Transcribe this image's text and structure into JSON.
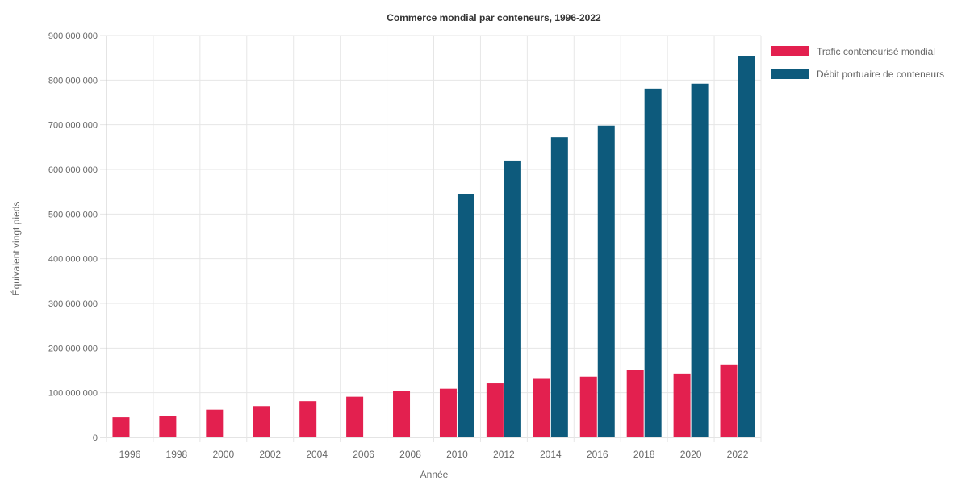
{
  "chart_data": {
    "type": "bar",
    "title": "Commerce mondial par conteneurs, 1996-2022",
    "xlabel": "Année",
    "ylabel": "Équivalent vingt pieds",
    "categories": [
      "1996",
      "1998",
      "2000",
      "2002",
      "2004",
      "2006",
      "2008",
      "2010",
      "2012",
      "2014",
      "2016",
      "2018",
      "2020",
      "2022"
    ],
    "ylim": [
      0,
      900000000
    ],
    "yticks": [
      0,
      100000000,
      200000000,
      300000000,
      400000000,
      500000000,
      600000000,
      700000000,
      800000000,
      900000000
    ],
    "ytick_labels": [
      "0",
      "100 000 000",
      "200 000 000",
      "300 000 000",
      "400 000 000",
      "500 000 000",
      "600 000 000",
      "700 000 000",
      "800 000 000",
      "900 000 000"
    ],
    "grid": true,
    "legend_position": "top-right",
    "series": [
      {
        "name": "Trafic conteneurisé mondial",
        "color": "#e3204f",
        "values": [
          45000000,
          48000000,
          62000000,
          70000000,
          81000000,
          91000000,
          103000000,
          109000000,
          121000000,
          131000000,
          136000000,
          150000000,
          143000000,
          163000000
        ]
      },
      {
        "name": "Débit portuaire de conteneurs",
        "color": "#0d5a7c",
        "values": [
          null,
          null,
          null,
          null,
          null,
          null,
          null,
          545000000,
          620000000,
          672000000,
          698000000,
          781000000,
          792000000,
          853000000
        ]
      }
    ]
  }
}
